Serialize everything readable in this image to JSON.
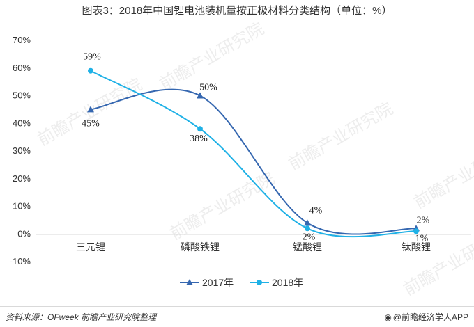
{
  "title": "图表3：2018年中国锂电池装机量按正极材料分类结构（单位：%）",
  "footer": {
    "source": "资料来源：OFweek 前瞻产业研究院整理",
    "brand": "@前瞻经济学人APP"
  },
  "watermark": "前瞻产业研究院",
  "chart_data": {
    "type": "line",
    "title": "图表3：2018年中国锂电池装机量按正极材料分类结构（单位：%）",
    "categories": [
      "三元锂",
      "磷酸铁锂",
      "锰酸锂",
      "钛酸锂"
    ],
    "ylim": [
      -10,
      70
    ],
    "yticks": [
      "-10%",
      "0%",
      "10%",
      "20%",
      "30%",
      "40%",
      "50%",
      "60%",
      "70%"
    ],
    "ytick_values": [
      -10,
      0,
      10,
      20,
      30,
      40,
      50,
      60,
      70
    ],
    "grid": false,
    "legend_position": "bottom",
    "series": [
      {
        "name": "2017年",
        "values": [
          45,
          50,
          4,
          2
        ],
        "labels": [
          "45%",
          "50%",
          "4%",
          "2%"
        ],
        "color": "#3567b0",
        "marker": "triangle"
      },
      {
        "name": "2018年",
        "values": [
          59,
          38,
          2,
          1
        ],
        "labels": [
          "59%",
          "38%",
          "2%",
          "1%"
        ],
        "color": "#1fb1e6",
        "marker": "circle"
      }
    ]
  }
}
